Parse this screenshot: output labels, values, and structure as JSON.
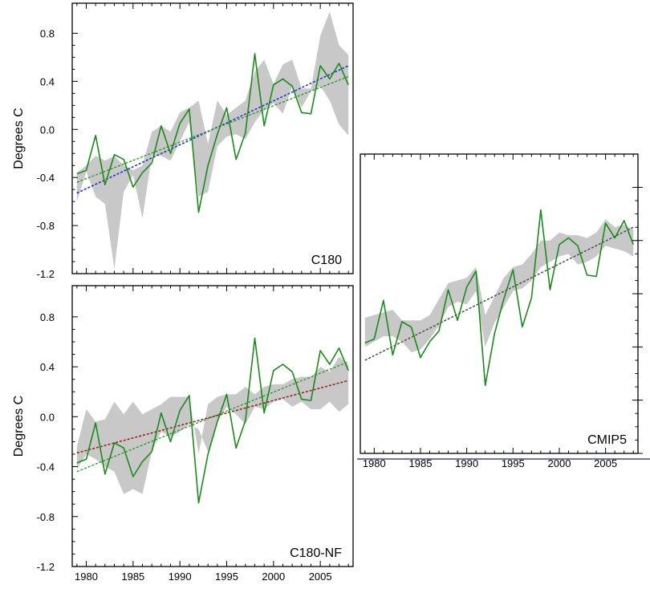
{
  "colors": {
    "observed": "#1a8a1a",
    "trend_observed": "#2a9a2a",
    "trend_c180": "#2233cc",
    "trend_c180nf": "#992222",
    "trend_cmip5": "#555555",
    "spread": "#c8c8c8",
    "bottom_rule": "#1a237e"
  },
  "chart_data": [
    {
      "type": "area",
      "panel_label": "C180",
      "ylabel": "Degrees C",
      "xlim": [
        1978.5,
        2008.5
      ],
      "ylim": [
        -1.2,
        1.05
      ],
      "yticks": [
        -1.2,
        -0.8,
        -0.4,
        0.0,
        0.4,
        0.8
      ],
      "ytick_labels": [
        "-1.2",
        "-0.8",
        "-0.4",
        "0.0",
        "0.4",
        "0.8"
      ],
      "xticks": [
        1980,
        1985,
        1990,
        1995,
        2000,
        2005
      ],
      "x": [
        1979,
        1980,
        1981,
        1982,
        1983,
        1984,
        1985,
        1986,
        1987,
        1988,
        1989,
        1990,
        1991,
        1992,
        1993,
        1994,
        1995,
        1996,
        1997,
        1998,
        1999,
        2000,
        2001,
        2002,
        2003,
        2004,
        2005,
        2006,
        2007,
        2008
      ],
      "observed": [
        -0.37,
        -0.34,
        -0.05,
        -0.46,
        -0.21,
        -0.25,
        -0.48,
        -0.36,
        -0.28,
        0.03,
        -0.2,
        0.05,
        0.17,
        -0.69,
        -0.3,
        -0.04,
        0.18,
        -0.25,
        -0.03,
        0.63,
        0.03,
        0.37,
        0.42,
        0.36,
        0.14,
        0.13,
        0.53,
        0.42,
        0.55,
        0.37
      ],
      "spread_low": [
        -0.6,
        -0.35,
        -0.56,
        -0.62,
        -1.16,
        -0.52,
        -0.38,
        -0.74,
        -0.22,
        -0.22,
        -0.26,
        -0.1,
        0.06,
        -0.56,
        -0.52,
        -0.14,
        -0.06,
        -0.04,
        -0.08,
        0.06,
        0.16,
        0.22,
        0.13,
        0.36,
        0.18,
        0.32,
        0.36,
        0.24,
        0.04,
        -0.05
      ],
      "spread_high": [
        -0.36,
        -0.3,
        -0.22,
        -0.26,
        -0.22,
        -0.3,
        -0.34,
        -0.3,
        -0.02,
        0.03,
        -0.02,
        0.14,
        0.18,
        0.24,
        -0.12,
        0.24,
        0.12,
        0.18,
        0.24,
        0.48,
        0.58,
        0.38,
        0.54,
        0.58,
        0.34,
        0.34,
        0.78,
        0.98,
        0.7,
        0.62
      ],
      "trend_observed": {
        "x": [
          1979,
          2008
        ],
        "y": [
          -0.44,
          0.44
        ]
      },
      "trend_model": {
        "x": [
          1979,
          2008
        ],
        "y": [
          -0.53,
          0.53
        ]
      }
    },
    {
      "type": "area",
      "panel_label": "C180-NF",
      "ylabel": "Degrees C",
      "xlim": [
        1978.5,
        2008.5
      ],
      "ylim": [
        -1.2,
        1.05
      ],
      "yticks": [
        -1.2,
        -0.8,
        -0.4,
        0.0,
        0.4,
        0.8
      ],
      "ytick_labels": [
        "-1.2",
        "-0.8",
        "-0.4",
        "0.0",
        "0.4",
        "0.8"
      ],
      "xticks": [
        1980,
        1985,
        1990,
        1995,
        2000,
        2005
      ],
      "xtick_labels": [
        "1980",
        "1985",
        "1990",
        "1995",
        "2000",
        "2005"
      ],
      "x": [
        1979,
        1980,
        1981,
        1982,
        1983,
        1984,
        1985,
        1986,
        1987,
        1988,
        1989,
        1990,
        1991,
        1992,
        1993,
        1994,
        1995,
        1996,
        1997,
        1998,
        1999,
        2000,
        2001,
        2002,
        2003,
        2004,
        2005,
        2006,
        2007,
        2008
      ],
      "observed": [
        -0.37,
        -0.34,
        -0.05,
        -0.46,
        -0.21,
        -0.25,
        -0.48,
        -0.36,
        -0.28,
        0.03,
        -0.2,
        0.05,
        0.17,
        -0.69,
        -0.3,
        -0.04,
        0.18,
        -0.25,
        -0.03,
        0.63,
        0.03,
        0.37,
        0.42,
        0.36,
        0.14,
        0.13,
        0.53,
        0.42,
        0.55,
        0.37
      ],
      "spread_low": [
        -0.42,
        -0.3,
        -0.34,
        -0.4,
        -0.44,
        -0.62,
        -0.58,
        -0.62,
        -0.28,
        -0.12,
        -0.16,
        -0.12,
        -0.06,
        -0.1,
        -0.28,
        -0.04,
        0.08,
        0.02,
        -0.06,
        0.08,
        0.06,
        0.12,
        0.14,
        0.08,
        0.12,
        0.06,
        0.06,
        0.12,
        0.04,
        0.1
      ],
      "spread_high": [
        -0.24,
        0.06,
        -0.04,
        -0.02,
        0.12,
        0.02,
        0.12,
        0.02,
        0.06,
        0.1,
        0.16,
        0.16,
        0.16,
        -0.3,
        0.1,
        0.16,
        0.18,
        0.18,
        0.24,
        0.18,
        0.24,
        0.26,
        0.26,
        0.3,
        0.32,
        0.32,
        0.4,
        0.36,
        0.48,
        0.42
      ],
      "trend_observed": {
        "x": [
          1979,
          2008
        ],
        "y": [
          -0.44,
          0.44
        ]
      },
      "trend_model": {
        "x": [
          1979,
          2008
        ],
        "y": [
          -0.29,
          0.29
        ]
      }
    },
    {
      "type": "area",
      "panel_label": "CMIP5",
      "xlim": [
        1978.5,
        2008.5
      ],
      "ylim": [
        -1.2,
        1.05
      ],
      "yticks": [
        -1.2,
        -0.8,
        -0.4,
        0.0,
        0.4,
        0.8
      ],
      "xticks": [
        1980,
        1985,
        1990,
        1995,
        2000,
        2005
      ],
      "xtick_labels": [
        "1980",
        "1985",
        "1990",
        "1995",
        "2000",
        "2005"
      ],
      "x": [
        1979,
        1980,
        1981,
        1982,
        1983,
        1984,
        1985,
        1986,
        1987,
        1988,
        1989,
        1990,
        1991,
        1992,
        1993,
        1994,
        1995,
        1996,
        1997,
        1998,
        1999,
        2000,
        2001,
        2002,
        2003,
        2004,
        2005,
        2006,
        2007,
        2008
      ],
      "observed": [
        -0.37,
        -0.34,
        -0.05,
        -0.46,
        -0.21,
        -0.25,
        -0.48,
        -0.36,
        -0.28,
        0.03,
        -0.2,
        0.05,
        0.17,
        -0.69,
        -0.3,
        -0.04,
        0.18,
        -0.25,
        -0.03,
        0.63,
        0.03,
        0.37,
        0.42,
        0.36,
        0.14,
        0.13,
        0.53,
        0.42,
        0.55,
        0.37
      ],
      "spread_low": [
        -0.4,
        -0.36,
        -0.32,
        -0.32,
        -0.36,
        -0.44,
        -0.42,
        -0.34,
        -0.24,
        -0.1,
        -0.06,
        -0.08,
        0.02,
        -0.4,
        -0.22,
        -0.1,
        0.02,
        0.04,
        0.1,
        0.2,
        0.24,
        0.28,
        0.3,
        0.22,
        0.24,
        0.28,
        0.36,
        0.34,
        0.32,
        0.28
      ],
      "spread_high": [
        -0.18,
        -0.16,
        -0.14,
        -0.12,
        -0.2,
        -0.2,
        -0.2,
        -0.16,
        -0.04,
        0.08,
        0.1,
        0.12,
        0.2,
        -0.16,
        -0.02,
        0.12,
        0.2,
        0.22,
        0.3,
        0.4,
        0.4,
        0.46,
        0.44,
        0.44,
        0.42,
        0.46,
        0.56,
        0.5,
        0.52,
        0.48
      ],
      "trend_observed": {
        "x": [
          1979,
          2008
        ],
        "y": [
          -0.44,
          0.44
        ]
      },
      "trend_model": {
        "x": [
          1979,
          2008
        ],
        "y": [
          -0.5,
          0.5
        ]
      }
    }
  ]
}
